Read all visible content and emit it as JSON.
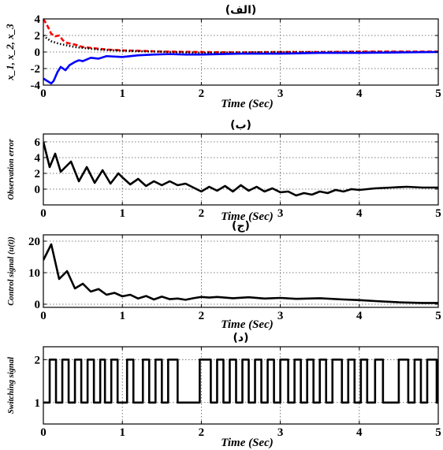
{
  "chart_data": [
    {
      "type": "line",
      "title": "(الف)",
      "xlabel": "Time (Sec)",
      "ylabel": "x_1, x_2, x_3",
      "xlim": [
        0,
        5
      ],
      "ylim": [
        -4,
        4
      ],
      "xticks": [
        "0",
        "1",
        "2",
        "3",
        "4",
        "5"
      ],
      "yticks": [
        "-4",
        "-2",
        "0",
        "2",
        "4"
      ],
      "grid": true,
      "series": [
        {
          "color": "#ff0000",
          "style": "dashed",
          "x": [
            0,
            0.05,
            0.1,
            0.15,
            0.2,
            0.25,
            0.3,
            0.4,
            0.5,
            0.6,
            0.8,
            1.0,
            1.2,
            1.5,
            2.0,
            2.5,
            3.0,
            3.5,
            4.0,
            4.5,
            5.0
          ],
          "y": [
            4.0,
            3.2,
            2.2,
            1.9,
            2.0,
            1.4,
            1.1,
            0.9,
            0.6,
            0.5,
            0.3,
            0.2,
            0.15,
            0.05,
            0.0,
            -0.05,
            0.0,
            0.0,
            0.05,
            0.05,
            0.05
          ]
        },
        {
          "color": "#000000",
          "style": "dotted",
          "x": [
            0,
            0.05,
            0.1,
            0.2,
            0.3,
            0.4,
            0.5,
            0.7,
            0.9,
            1.2,
            1.6,
            2.0,
            2.5,
            3.0,
            3.5,
            4.0,
            4.5,
            5.0
          ],
          "y": [
            2.0,
            1.6,
            1.3,
            1.0,
            0.8,
            0.6,
            0.5,
            0.3,
            0.2,
            0.1,
            0.0,
            -0.1,
            -0.05,
            0.0,
            0.0,
            0.0,
            0.0,
            0.0
          ]
        },
        {
          "color": "#0000ff",
          "style": "solid",
          "x": [
            0,
            0.05,
            0.1,
            0.13,
            0.18,
            0.22,
            0.28,
            0.33,
            0.4,
            0.45,
            0.5,
            0.55,
            0.6,
            0.7,
            0.8,
            1.0,
            1.2,
            1.4,
            1.6,
            1.8,
            2.0,
            2.5,
            3.0,
            3.5,
            4.0,
            4.5,
            5.0
          ],
          "y": [
            -3.2,
            -3.5,
            -3.8,
            -3.5,
            -2.4,
            -1.8,
            -2.2,
            -1.6,
            -1.2,
            -1.0,
            -1.1,
            -0.9,
            -0.7,
            -0.8,
            -0.5,
            -0.6,
            -0.4,
            -0.3,
            -0.25,
            -0.3,
            -0.3,
            -0.2,
            -0.2,
            -0.1,
            -0.1,
            -0.05,
            0.0
          ]
        }
      ]
    },
    {
      "type": "line",
      "title": "(ب)",
      "xlabel": "Time (Sec)",
      "ylabel": "Observation error",
      "xlim": [
        0,
        5
      ],
      "ylim": [
        -2,
        7
      ],
      "xticks": [
        "0",
        "1",
        "2",
        "3",
        "4",
        "5"
      ],
      "yticks": [
        "0",
        "2",
        "4",
        "6"
      ],
      "grid": true,
      "series": [
        {
          "color": "#000000",
          "style": "solid",
          "x": [
            0,
            0.08,
            0.15,
            0.22,
            0.35,
            0.45,
            0.55,
            0.65,
            0.75,
            0.85,
            0.95,
            1.0,
            1.1,
            1.2,
            1.3,
            1.4,
            1.5,
            1.6,
            1.7,
            1.8,
            1.9,
            2.0,
            2.1,
            2.2,
            2.3,
            2.4,
            2.5,
            2.6,
            2.7,
            2.8,
            2.9,
            3.0,
            3.1,
            3.2,
            3.3,
            3.4,
            3.5,
            3.6,
            3.7,
            3.8,
            3.9,
            4.0,
            4.2,
            4.4,
            4.6,
            4.8,
            5.0
          ],
          "y": [
            6.0,
            2.8,
            4.5,
            2.2,
            3.5,
            1.0,
            2.8,
            0.8,
            2.4,
            0.7,
            2.0,
            1.5,
            0.6,
            1.3,
            0.4,
            1.0,
            0.5,
            1.0,
            0.5,
            0.7,
            0.2,
            -0.3,
            0.3,
            -0.2,
            0.4,
            -0.3,
            0.5,
            -0.2,
            0.3,
            -0.3,
            0.1,
            -0.4,
            -0.3,
            -0.8,
            -0.5,
            -0.7,
            -0.3,
            -0.5,
            -0.1,
            -0.3,
            0.0,
            -0.1,
            0.1,
            0.2,
            0.3,
            0.2,
            0.2
          ]
        }
      ]
    },
    {
      "type": "line",
      "title": "(ج)",
      "xlabel": "Time (Sec)",
      "ylabel": "Control signal (u(t))",
      "xlim": [
        0,
        5
      ],
      "ylim": [
        -1,
        22
      ],
      "xticks": [
        "0",
        "1",
        "2",
        "3",
        "4",
        "5"
      ],
      "yticks": [
        "0",
        "10",
        "20"
      ],
      "grid": true,
      "series": [
        {
          "color": "#000000",
          "style": "solid",
          "x": [
            0,
            0.05,
            0.1,
            0.2,
            0.3,
            0.4,
            0.5,
            0.6,
            0.7,
            0.8,
            0.9,
            1.0,
            1.1,
            1.2,
            1.3,
            1.4,
            1.5,
            1.6,
            1.7,
            1.8,
            1.9,
            2.0,
            2.1,
            2.2,
            2.4,
            2.6,
            2.8,
            3.0,
            3.2,
            3.5,
            3.8,
            4.0,
            4.2,
            4.5,
            4.8,
            5.0
          ],
          "y": [
            14.0,
            16.5,
            19.0,
            8.0,
            10.5,
            5.0,
            6.5,
            4.0,
            4.8,
            3.0,
            3.6,
            2.5,
            3.0,
            1.8,
            2.6,
            1.5,
            2.4,
            1.6,
            1.8,
            1.4,
            1.9,
            2.3,
            2.1,
            2.3,
            1.9,
            2.2,
            1.8,
            2.0,
            1.7,
            1.9,
            1.5,
            1.3,
            1.0,
            0.6,
            0.4,
            0.4
          ]
        }
      ]
    },
    {
      "type": "line",
      "title": "(د)",
      "xlabel": "Time (Sec)",
      "ylabel": "Switching signal",
      "xlim": [
        0,
        5
      ],
      "ylim": [
        0.5,
        2.3
      ],
      "xticks": [
        "0",
        "1",
        "2",
        "3",
        "4",
        "5"
      ],
      "yticks": [
        "1",
        "2"
      ],
      "grid": true,
      "step": true,
      "series": [
        {
          "color": "#000000",
          "style": "solid",
          "x": [
            0,
            0.08,
            0.16,
            0.24,
            0.32,
            0.4,
            0.48,
            0.56,
            0.64,
            0.72,
            0.78,
            0.86,
            0.94,
            1.06,
            1.14,
            1.26,
            1.34,
            1.42,
            1.5,
            1.58,
            1.7,
            1.98,
            2.12,
            2.2,
            2.28,
            2.36,
            2.44,
            2.52,
            2.6,
            2.68,
            2.76,
            2.84,
            2.92,
            3.0,
            3.1,
            3.18,
            3.26,
            3.34,
            3.42,
            3.5,
            3.58,
            3.66,
            3.78,
            3.86,
            3.94,
            4.02,
            4.1,
            4.2,
            4.3,
            4.5,
            4.62,
            4.7,
            4.78,
            4.86,
            4.98,
            5.0
          ],
          "y": [
            1,
            2,
            1,
            2,
            1,
            2,
            1,
            2,
            1,
            2,
            1,
            2,
            1,
            2,
            1,
            2,
            1,
            2,
            1,
            2,
            1,
            2,
            1,
            2,
            1,
            2,
            1,
            2,
            1,
            2,
            1,
            2,
            1,
            2,
            1,
            2,
            1,
            2,
            1,
            2,
            1,
            2,
            1,
            2,
            1,
            2,
            1,
            2,
            1,
            2,
            1,
            2,
            1,
            2,
            1,
            2
          ]
        }
      ]
    }
  ]
}
